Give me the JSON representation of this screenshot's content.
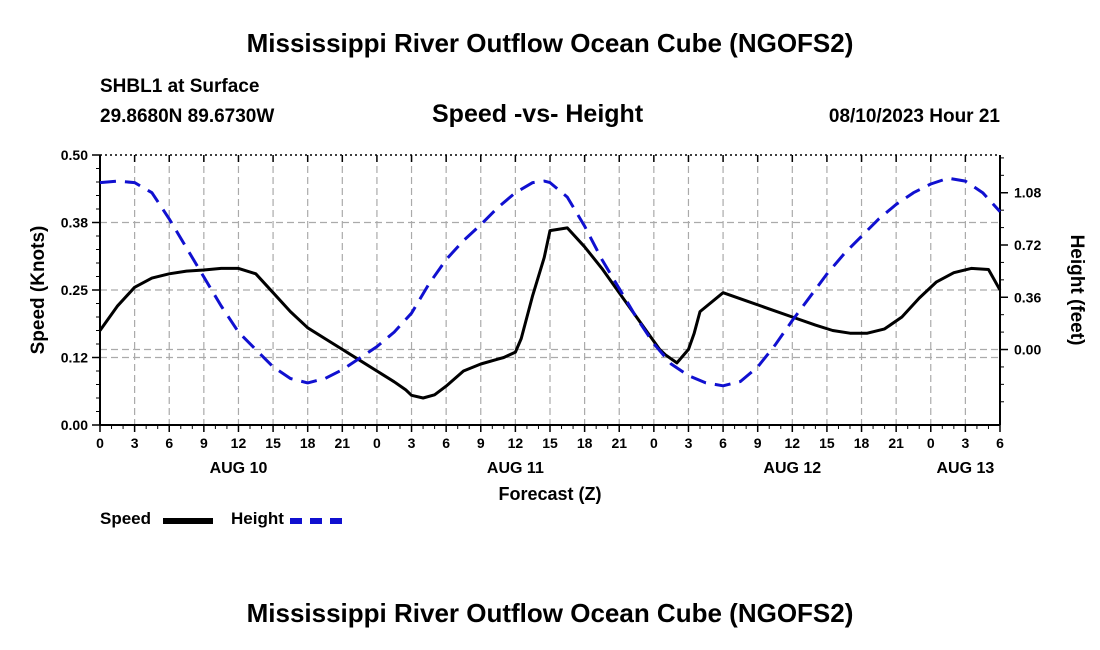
{
  "header": {
    "title": "Mississippi River Outflow Ocean Cube (NGOFS2)",
    "station": "SHBL1 at Surface",
    "coords": "29.8680N  89.6730W",
    "subtitle": "Speed -vs- Height",
    "datetime": "08/10/2023 Hour 21"
  },
  "footer": {
    "title": "Mississippi River Outflow Ocean Cube (NGOFS2)"
  },
  "legend": {
    "speed_label": "Speed",
    "height_label": "Height"
  },
  "chart_data": {
    "type": "line",
    "title": "Speed -vs- Height",
    "xlabel": "Forecast (Z)",
    "ylabel": "Speed (Knots)",
    "y2label": "Height (feet)",
    "x_range": [
      0,
      78
    ],
    "ylim": [
      0,
      0.5
    ],
    "y2lim": [
      -0.52,
      1.34
    ],
    "y_ticks": [
      "0.00",
      "0.12",
      "0.25",
      "0.38",
      "0.50"
    ],
    "y_tick_values": [
      0,
      0.125,
      0.25,
      0.375,
      0.5
    ],
    "y2_ticks": [
      "0.00",
      "0.36",
      "0.72",
      "1.08"
    ],
    "y2_tick_values": [
      0,
      0.36,
      0.72,
      1.08
    ],
    "x_tick_labels": [
      "0",
      "3",
      "6",
      "9",
      "12",
      "15",
      "18",
      "21",
      "0",
      "3",
      "6",
      "9",
      "12",
      "15",
      "18",
      "21",
      "0",
      "3",
      "6",
      "9",
      "12",
      "15",
      "18",
      "21",
      "0",
      "3",
      "6"
    ],
    "day_labels": [
      {
        "label": "AUG 10",
        "hour": 12
      },
      {
        "label": "AUG 11",
        "hour": 36
      },
      {
        "label": "AUG 12",
        "hour": 60
      },
      {
        "label": "AUG 13",
        "hour": 75
      }
    ],
    "grid": true,
    "series": [
      {
        "name": "Speed",
        "axis": "left",
        "color": "#000000",
        "style": "solid",
        "x": [
          0,
          1.5,
          3,
          4.5,
          6,
          7.5,
          9,
          10.5,
          12,
          13.5,
          15,
          16.5,
          18,
          19.5,
          21,
          22.5,
          24,
          25.5,
          26.5,
          27,
          28,
          29,
          30,
          31.5,
          33,
          34.5,
          35,
          36,
          36.5,
          37.5,
          38.5,
          39,
          40.5,
          42,
          43.5,
          45,
          46.5,
          48,
          48.5,
          49,
          50,
          51,
          51.5,
          52,
          54,
          56,
          58,
          60,
          62,
          63.5,
          65,
          66.5,
          68,
          69.5,
          71,
          72.5,
          74,
          75.5,
          77,
          78
        ],
        "values": [
          0.175,
          0.22,
          0.255,
          0.272,
          0.28,
          0.285,
          0.287,
          0.29,
          0.29,
          0.28,
          0.245,
          0.21,
          0.18,
          0.16,
          0.14,
          0.12,
          0.1,
          0.08,
          0.065,
          0.055,
          0.05,
          0.056,
          0.072,
          0.1,
          0.113,
          0.122,
          0.125,
          0.135,
          0.16,
          0.24,
          0.31,
          0.36,
          0.365,
          0.33,
          0.29,
          0.245,
          0.2,
          0.155,
          0.14,
          0.13,
          0.115,
          0.14,
          0.17,
          0.21,
          0.245,
          0.23,
          0.215,
          0.2,
          0.185,
          0.175,
          0.17,
          0.17,
          0.178,
          0.2,
          0.235,
          0.265,
          0.282,
          0.29,
          0.288,
          0.25
        ]
      },
      {
        "name": "Height",
        "axis": "right",
        "color": "#1010d0",
        "style": "dashed",
        "x": [
          0,
          1.5,
          3,
          4.5,
          6,
          7.5,
          9,
          10.5,
          12,
          13.5,
          15,
          16.5,
          18,
          19.5,
          21,
          22.5,
          24,
          25.5,
          27,
          28.5,
          30,
          31.5,
          33,
          34.5,
          36,
          37.5,
          38.5,
          39,
          40.5,
          42,
          43.5,
          45,
          46.5,
          48,
          49.5,
          51,
          52.5,
          54,
          55.5,
          57,
          58.5,
          60,
          61.5,
          63,
          64.5,
          66,
          67.5,
          69,
          70.5,
          72,
          73.5,
          75,
          76.5,
          78
        ],
        "values": [
          1.15,
          1.16,
          1.15,
          1.08,
          0.9,
          0.7,
          0.5,
          0.3,
          0.12,
          0.0,
          -0.12,
          -0.2,
          -0.23,
          -0.2,
          -0.14,
          -0.06,
          0.02,
          0.12,
          0.25,
          0.45,
          0.62,
          0.75,
          0.86,
          0.98,
          1.08,
          1.15,
          1.16,
          1.15,
          1.05,
          0.85,
          0.62,
          0.42,
          0.22,
          0.04,
          -0.1,
          -0.18,
          -0.23,
          -0.25,
          -0.22,
          -0.12,
          0.03,
          0.2,
          0.36,
          0.52,
          0.66,
          0.78,
          0.9,
          1.0,
          1.08,
          1.14,
          1.18,
          1.16,
          1.08,
          0.95
        ]
      }
    ]
  }
}
